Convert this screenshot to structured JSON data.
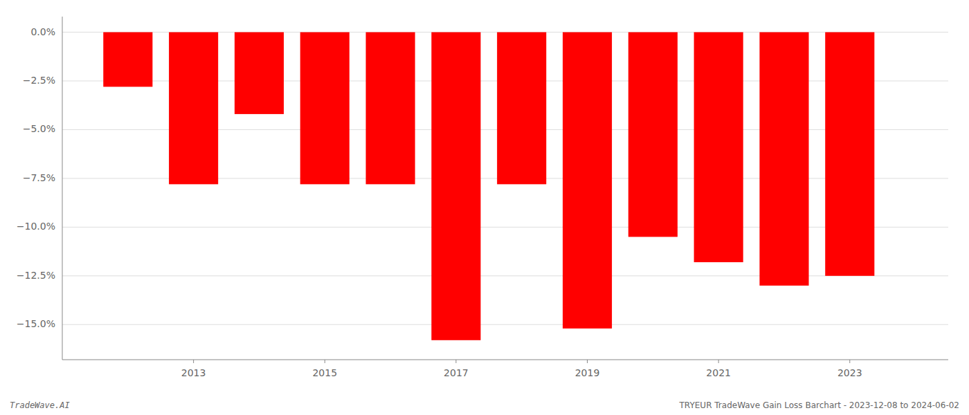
{
  "chart_data": {
    "type": "bar",
    "x": [
      2012,
      2013,
      2014,
      2015,
      2016,
      2017,
      2018,
      2019,
      2020,
      2021,
      2022,
      2023
    ],
    "values": [
      -2.8,
      -7.8,
      -4.2,
      -7.8,
      -7.8,
      -15.8,
      -7.8,
      -15.2,
      -10.5,
      -11.8,
      -13.0,
      -12.5
    ],
    "color": "#ff0000",
    "xlim": [
      2011.0,
      2024.5
    ],
    "xticks": [
      2013,
      2015,
      2017,
      2019,
      2021,
      2023
    ],
    "ylim": [
      -16.8,
      0.8
    ],
    "yticks": [
      {
        "value": 0.0,
        "label": "0.0%"
      },
      {
        "value": -2.5,
        "label": "−2.5%"
      },
      {
        "value": -5.0,
        "label": "−5.0%"
      },
      {
        "value": -7.5,
        "label": "−7.5%"
      },
      {
        "value": -10.0,
        "label": "−10.0%"
      },
      {
        "value": -12.5,
        "label": "−12.5%"
      },
      {
        "value": -15.0,
        "label": "−15.0%"
      }
    ],
    "grid": true,
    "annotations": [
      "TradeWave.AI",
      "TRYEUR TradeWave Gain Loss Barchart - 2023-12-08 to 2024-06-02"
    ]
  }
}
